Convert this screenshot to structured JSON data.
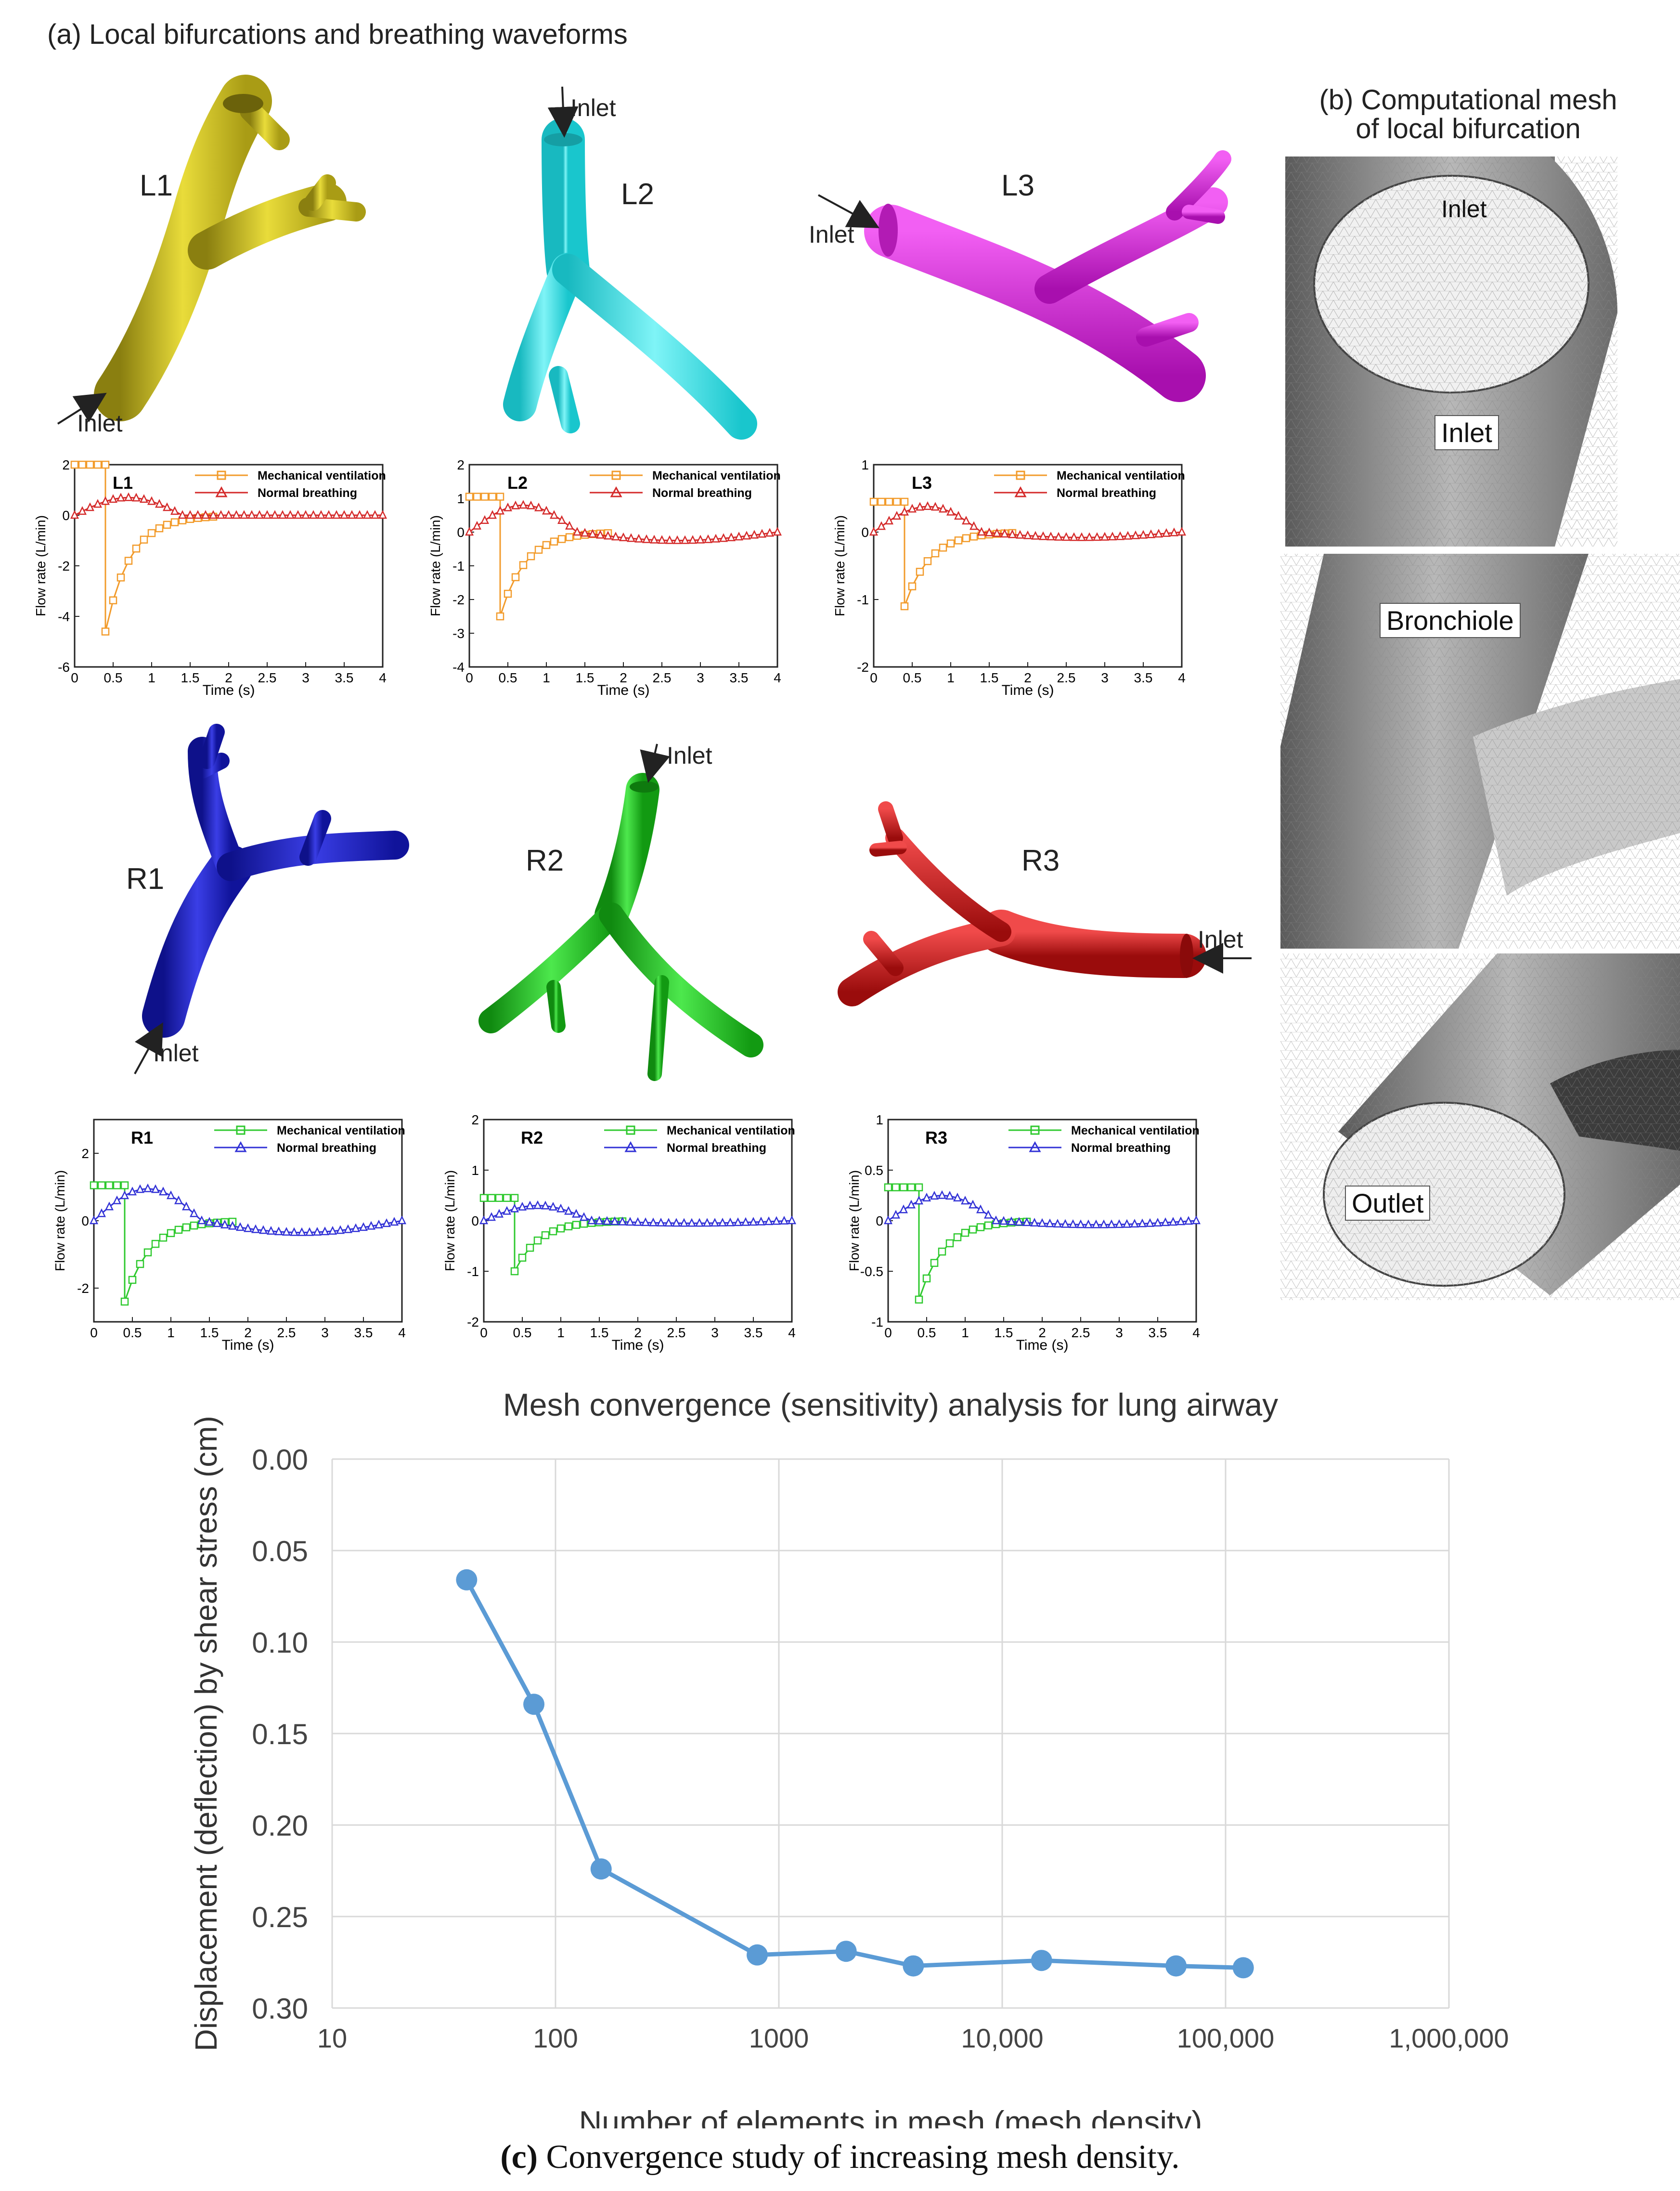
{
  "panel_a": {
    "title": "(a) Local bifurcations and breathing waveforms",
    "airways": [
      {
        "id": "L1",
        "label": "L1",
        "inlet": "Inlet",
        "color": "#d4c521"
      },
      {
        "id": "L2",
        "label": "L2",
        "inlet": "Inlet",
        "color": "#2fe6ec"
      },
      {
        "id": "L3",
        "label": "L3",
        "inlet": "Inlet",
        "color": "#e21ee4"
      },
      {
        "id": "R1",
        "label": "R1",
        "inlet": "Inlet",
        "color": "#1e22c8"
      },
      {
        "id": "R2",
        "label": "R2",
        "inlet": "Inlet",
        "color": "#22c722"
      },
      {
        "id": "R3",
        "label": "R3",
        "inlet": "Inlet",
        "color": "#d41818"
      }
    ]
  },
  "panel_b": {
    "title_line1": "(b) Computational mesh",
    "title_line2": "of local bifurcation",
    "tags": {
      "inlet_top": "Inlet",
      "inlet_face": "Inlet",
      "bronchiole": "Bronchiole",
      "outlet": "Outlet"
    }
  },
  "chart_data": [
    {
      "type": "line",
      "name": "L1",
      "title": "L1",
      "xlabel": "Time (s)",
      "ylabel": "Flow rate (L/min)",
      "xlim": [
        0,
        4
      ],
      "ylim": [
        -6,
        2
      ],
      "xticks": [
        "0",
        "0.5",
        "1",
        "1.5",
        "2",
        "2.5",
        "3",
        "3.5",
        "4"
      ],
      "yticks": [
        "-6",
        "-4",
        "-2",
        "0",
        "2"
      ],
      "legend": [
        "Mechanical ventilation",
        "Normal breathing"
      ],
      "mv_color": "#f29b2b",
      "nb_color": "#d42a2a",
      "mv_peak": 2.0,
      "mv_trough": -4.6,
      "nb_amp": 0.7,
      "nb_tail": 0.0
    },
    {
      "type": "line",
      "name": "L2",
      "title": "L2",
      "xlabel": "Time (s)",
      "ylabel": "Flow rate (L/min)",
      "xlim": [
        0,
        4
      ],
      "ylim": [
        -4,
        2
      ],
      "xticks": [
        "0",
        "0.5",
        "1",
        "1.5",
        "2",
        "2.5",
        "3",
        "3.5",
        "4"
      ],
      "yticks": [
        "-4",
        "-3",
        "-2",
        "-1",
        "0",
        "1",
        "2"
      ],
      "legend": [
        "Mechanical ventilation",
        "Normal breathing"
      ],
      "mv_color": "#f29b2b",
      "nb_color": "#d42a2a",
      "mv_peak": 1.05,
      "mv_trough": -2.5,
      "nb_amp": 0.8,
      "nb_tail": -0.25
    },
    {
      "type": "line",
      "name": "L3",
      "title": "L3",
      "xlabel": "Time (s)",
      "ylabel": "Flow rate (L/min)",
      "xlim": [
        0,
        4
      ],
      "ylim": [
        -2,
        1
      ],
      "xticks": [
        "0",
        "0.5",
        "1",
        "1.5",
        "2",
        "2.5",
        "3",
        "3.5",
        "4"
      ],
      "yticks": [
        "-2",
        "-1",
        "0",
        "1"
      ],
      "legend": [
        "Mechanical ventilation",
        "Normal breathing"
      ],
      "mv_color": "#f29b2b",
      "nb_color": "#d42a2a",
      "mv_peak": 0.45,
      "mv_trough": -1.1,
      "nb_amp": 0.38,
      "nb_tail": -0.08
    },
    {
      "type": "line",
      "name": "R1",
      "title": "R1",
      "xlabel": "Time (s)",
      "ylabel": "Flow rate (L/min)",
      "xlim": [
        0,
        4
      ],
      "ylim": [
        -3,
        3
      ],
      "xticks": [
        "0",
        "0.5",
        "1",
        "1.5",
        "2",
        "2.5",
        "3",
        "3.5",
        "4"
      ],
      "yticks": [
        "-2",
        "0",
        "2"
      ],
      "legend": [
        "Mechanical ventilation",
        "Normal breathing"
      ],
      "mv_color": "#2ec92e",
      "nb_color": "#3232d6",
      "mv_peak": 1.05,
      "mv_trough": -2.4,
      "nb_amp": 0.95,
      "nb_tail": -0.35
    },
    {
      "type": "line",
      "name": "R2",
      "title": "R2",
      "xlabel": "Time (s)",
      "ylabel": "Flow rate (L/min)",
      "xlim": [
        0,
        4
      ],
      "ylim": [
        -2,
        2
      ],
      "xticks": [
        "0",
        "0.5",
        "1",
        "1.5",
        "2",
        "2.5",
        "3",
        "3.5",
        "4"
      ],
      "yticks": [
        "-2",
        "-1",
        "0",
        "1",
        "2"
      ],
      "legend": [
        "Mechanical ventilation",
        "Normal breathing"
      ],
      "mv_color": "#2ec92e",
      "nb_color": "#3232d6",
      "mv_peak": 0.45,
      "mv_trough": -1.0,
      "nb_amp": 0.3,
      "nb_tail": -0.05
    },
    {
      "type": "line",
      "name": "R3",
      "title": "R3",
      "xlabel": "Time (s)",
      "ylabel": "Flow rate (L/min)",
      "xlim": [
        0,
        4
      ],
      "ylim": [
        -1,
        1
      ],
      "xticks": [
        "0",
        "0.5",
        "1",
        "1.5",
        "2",
        "2.5",
        "3",
        "3.5",
        "4"
      ],
      "yticks": [
        "-1",
        "-0.5",
        "0",
        "0.5",
        "1"
      ],
      "legend": [
        "Mechanical ventilation",
        "Normal breathing"
      ],
      "mv_color": "#2ec92e",
      "nb_color": "#3232d6",
      "mv_peak": 0.33,
      "mv_trough": -0.78,
      "nb_amp": 0.25,
      "nb_tail": -0.04
    },
    {
      "type": "line",
      "name": "convergence",
      "title": "Mesh convergence (sensitivity) analysis for lung airway",
      "xlabel": "Number of elements in mesh (mesh density)",
      "ylabel": "Displacement (deflection) by shear stress (cm)",
      "xscale": "log",
      "xlim": [
        10,
        1000000
      ],
      "ylim": [
        0.0,
        0.3
      ],
      "y_inverted": true,
      "xtick_labels": [
        "10",
        "100",
        "1000",
        "10,000",
        "100,000",
        "1,000,000"
      ],
      "ytick_labels": [
        "0.00",
        "0.05",
        "0.10",
        "0.15",
        "0.20",
        "0.25",
        "0.30"
      ],
      "x": [
        40,
        80,
        160,
        800,
        2000,
        4000,
        15000,
        60000,
        120000
      ],
      "y": [
        0.066,
        0.134,
        0.224,
        0.271,
        0.269,
        0.277,
        0.274,
        0.277,
        0.278
      ],
      "color": "#5b9bd5"
    }
  ],
  "caption": {
    "label": "(c)",
    "text": " Convergence study of increasing mesh density."
  }
}
